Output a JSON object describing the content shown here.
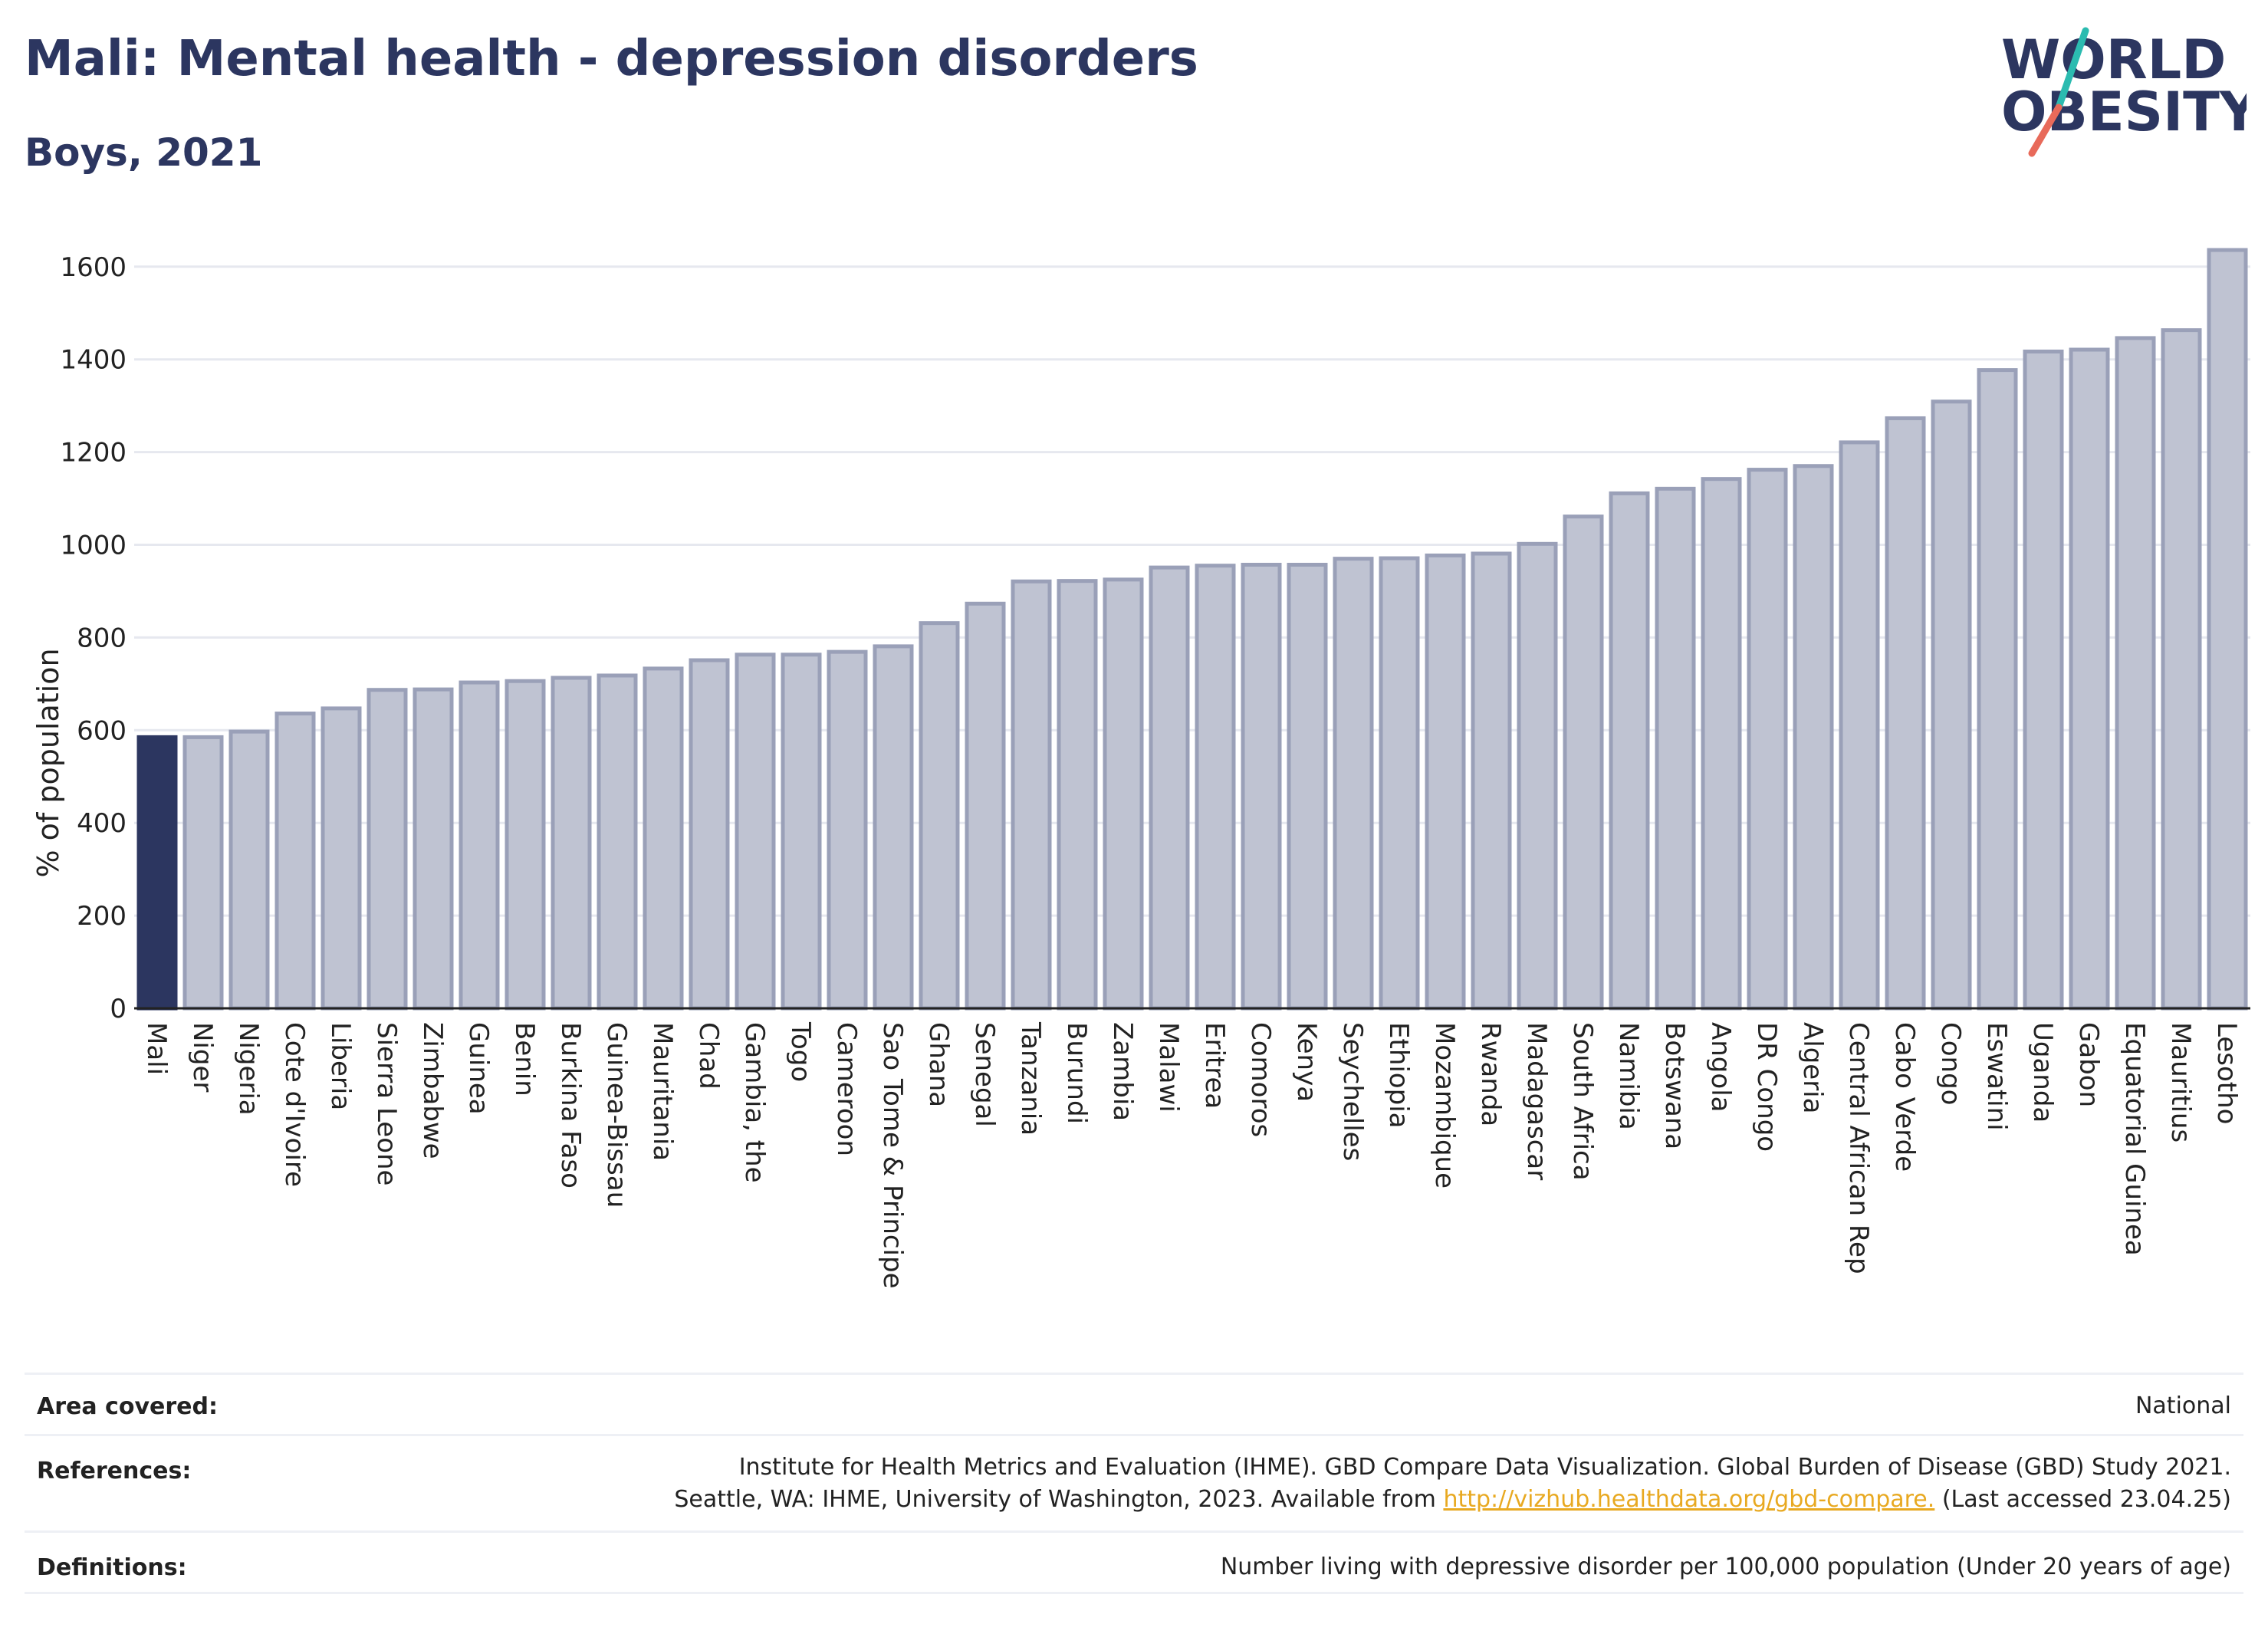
{
  "header": {
    "title": "Mali: Mental health - depression disorders",
    "subtitle": "Boys, 2021"
  },
  "logo": {
    "line1": "WORLD",
    "line2": "OBESITY"
  },
  "colors": {
    "highlight": "#2c3660",
    "bar_fill": "#bfc3d2",
    "bar_stroke": "#9aa0b8",
    "grid": "#e6e8ef",
    "logo_slash_top": "#2bbbb0",
    "logo_slash_bottom": "#e86a5a"
  },
  "chart_data": {
    "type": "bar",
    "title": "Mali: Mental health - depression disorders",
    "subtitle": "Boys, 2021",
    "xlabel": "",
    "ylabel": "% of population",
    "ylim": [
      0,
      1700
    ],
    "yticks": [
      0,
      200,
      400,
      600,
      800,
      1000,
      1200,
      1400,
      1600
    ],
    "grid": true,
    "highlight": "Mali",
    "categories": [
      "Mali",
      "Niger",
      "Nigeria",
      "Cote d'Ivoire",
      "Liberia",
      "Sierra Leone",
      "Zimbabwe",
      "Guinea",
      "Benin",
      "Burkina Faso",
      "Guinea-Bissau",
      "Mauritania",
      "Chad",
      "Gambia, the",
      "Togo",
      "Cameroon",
      "Sao Tome & Principe",
      "Ghana",
      "Senegal",
      "Tanzania",
      "Burundi",
      "Zambia",
      "Malawi",
      "Eritrea",
      "Comoros",
      "Kenya",
      "Seychelles",
      "Ethiopia",
      "Mozambique",
      "Rwanda",
      "Madagascar",
      "South Africa",
      "Namibia",
      "Botswana",
      "Angola",
      "DR Congo",
      "Algeria",
      "Central African Rep",
      "Cabo Verde",
      "Congo",
      "Eswatini",
      "Uganda",
      "Gabon",
      "Equatorial Guinea",
      "Mauritius",
      "Lesotho"
    ],
    "values": [
      585,
      585,
      597,
      636,
      647,
      687,
      688,
      703,
      706,
      713,
      718,
      733,
      751,
      763,
      763,
      769,
      781,
      831,
      873,
      921,
      922,
      925,
      951,
      955,
      957,
      957,
      970,
      971,
      977,
      981,
      1002,
      1061,
      1111,
      1121,
      1142,
      1162,
      1170,
      1221,
      1273,
      1309,
      1377,
      1417,
      1421,
      1446,
      1463,
      1636
    ]
  },
  "footer": {
    "area_label": "Area covered:",
    "area_value": "National",
    "references_label": "References:",
    "references_line1": "Institute for Health Metrics and Evaluation (IHME). GBD Compare Data Visualization. Global Burden of Disease (GBD) Study 2021.",
    "references_line2_pre": "Seattle, WA: IHME, University of Washington, 2023. Available from ",
    "references_link": "http://vizhub.healthdata.org/gbd-compare.",
    "references_line2_post": " (Last accessed 23.04.25)",
    "definitions_label": "Definitions:",
    "definitions_value": "Number living with depressive disorder per 100,000 population (Under 20 years of age)"
  }
}
